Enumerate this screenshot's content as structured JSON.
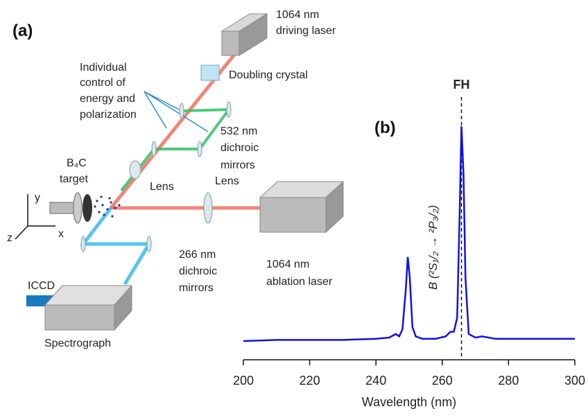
{
  "diagram": {
    "panel_label": "(a)",
    "driving_laser": [
      "1064 nm",
      "driving laser"
    ],
    "doubling_crystal": "Doubling crystal",
    "control_note": [
      "Individual",
      "control of",
      "energy and",
      "polarization"
    ],
    "green_mirrors": [
      "532 nm",
      "dichroic",
      "mirrors"
    ],
    "lens_1": "Lens",
    "lens_2": "Lens",
    "target": [
      "B₄C",
      "target"
    ],
    "ablation_laser": [
      "1064 nm",
      "ablation laser"
    ],
    "uv_mirrors": [
      "266 nm",
      "dichroic",
      "mirrors"
    ],
    "detector": "ICCD",
    "spectrograph": "Spectrograph",
    "axes": [
      "y",
      "z",
      "x"
    ]
  },
  "chart_data": {
    "type": "line",
    "panel_label": "(b)",
    "x_label": "Wavelength (nm)",
    "x": [
      200,
      210,
      220,
      230,
      240,
      244,
      246,
      247,
      248,
      249,
      249.6,
      250.2,
      251,
      252,
      254,
      258,
      261,
      262.5,
      263.5,
      264.5,
      265.2,
      265.8,
      266.4,
      267,
      268,
      270,
      272,
      276,
      285,
      300
    ],
    "values": [
      0.08,
      0.085,
      0.085,
      0.085,
      0.09,
      0.095,
      0.11,
      0.1,
      0.13,
      0.3,
      0.44,
      0.35,
      0.14,
      0.1,
      0.09,
      0.09,
      0.1,
      0.12,
      0.12,
      0.18,
      0.6,
      1.0,
      0.8,
      0.35,
      0.11,
      0.095,
      0.1,
      0.09,
      0.09,
      0.09
    ],
    "color": "#1010e0",
    "xlim": [
      200,
      300
    ],
    "ylim": [
      0,
      1
    ],
    "xticks": [
      200,
      220,
      240,
      260,
      280,
      300
    ],
    "annotations": [
      {
        "text": "FH",
        "x": 265.8
      },
      {
        "text": "B (²S₁/₂ → ²P₃/₂)"
      }
    ]
  }
}
